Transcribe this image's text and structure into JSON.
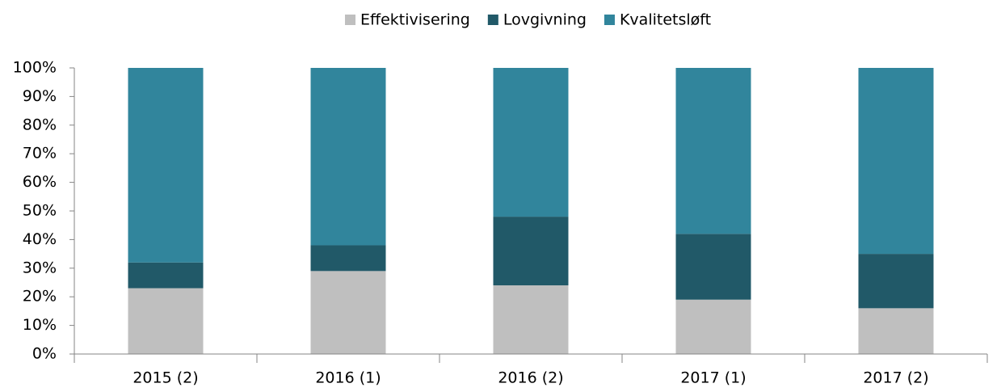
{
  "chart_data": {
    "type": "bar",
    "stacked": true,
    "categories": [
      "2015 (2)",
      "2016 (1)",
      "2016 (2)",
      "2017 (1)",
      "2017 (2)"
    ],
    "series": [
      {
        "name": "Effektivisering",
        "color": "#bfbfbf",
        "values": [
          23,
          29,
          24,
          19,
          16
        ]
      },
      {
        "name": "Lovgivning",
        "color": "#215968",
        "values": [
          9,
          9,
          24,
          23,
          19
        ]
      },
      {
        "name": "Kvalitetsløft",
        "color": "#31859c",
        "values": [
          68,
          62,
          52,
          58,
          65
        ]
      }
    ],
    "ylim": [
      0,
      100
    ],
    "yticks": [
      {
        "value": 0,
        "label": "0%"
      },
      {
        "value": 10,
        "label": "10%"
      },
      {
        "value": 20,
        "label": "20%"
      },
      {
        "value": 30,
        "label": "30%"
      },
      {
        "value": 40,
        "label": "40%"
      },
      {
        "value": 50,
        "label": "50%"
      },
      {
        "value": 60,
        "label": "60%"
      },
      {
        "value": 70,
        "label": "70%"
      },
      {
        "value": 80,
        "label": "80%"
      },
      {
        "value": 90,
        "label": "90%"
      },
      {
        "value": 100,
        "label": "100%"
      }
    ],
    "legend": "top",
    "grid": false
  }
}
